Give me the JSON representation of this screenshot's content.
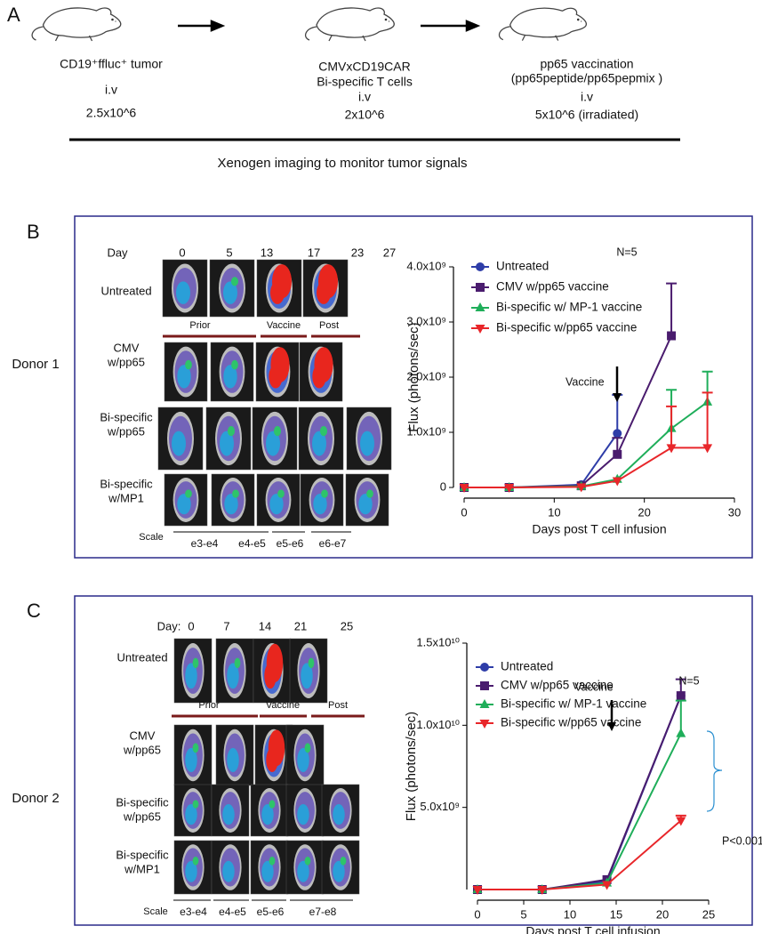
{
  "panel_a": {
    "label": "A",
    "steps": [
      {
        "lines": [
          "CD19⁺ffluc⁺ tumor",
          "i.v",
          "2.5x10^6"
        ]
      },
      {
        "lines": [
          "CMVxCD19CAR",
          "Bi-specific T cells",
          "i.v",
          "2x10^6"
        ]
      },
      {
        "lines": [
          "pp65 vaccination",
          "(pp65peptide/pp65pepmix )",
          "i.v",
          "5x10^6 (irradiated)"
        ]
      }
    ],
    "caption": "Xenogen imaging to monitor tumor signals"
  },
  "panel_b": {
    "label": "B",
    "donor": "Donor 1",
    "day_label": "Day",
    "days": [
      "0",
      "5",
      "13",
      "17",
      "23",
      "27"
    ],
    "rows": [
      [
        "Untreated"
      ],
      [
        "CMV",
        "w/pp65"
      ],
      [
        "Bi-specific",
        "w/pp65"
      ],
      [
        "Bi-specific",
        "w/MP1"
      ]
    ],
    "phases": [
      "Prior",
      "Vaccine",
      "Post"
    ],
    "scale_label": "Scale",
    "scales": [
      "e3-e4",
      "e4-e5",
      "e5-e6",
      "e6-e7"
    ]
  },
  "panel_c": {
    "label": "C",
    "donor": "Donor 2",
    "day_label": "Day:",
    "days": [
      "0",
      "7",
      "14",
      "21",
      "25"
    ],
    "rows": [
      [
        "Untreated"
      ],
      [
        "CMV",
        "w/pp65"
      ],
      [
        "Bi-specific",
        "w/pp65"
      ],
      [
        "Bi-specific",
        "w/MP1"
      ]
    ],
    "phases": [
      "Prior",
      "Vaccine",
      "Post"
    ],
    "scale_label": "Scale",
    "scales": [
      "e3-e4",
      "e4-e5",
      "e5-e6",
      "e7-e8"
    ]
  },
  "chart_data": [
    {
      "type": "line",
      "x_label": "Days post T cell infusion",
      "y_label": "Flux (photons/sec)",
      "annotations": [
        "N=5",
        "Vaccine"
      ],
      "xlim": [
        0,
        30
      ],
      "xticks": [
        0,
        10,
        20,
        30
      ],
      "ylim": [
        0,
        4000000000
      ],
      "yticks": [
        0,
        {
          "value": 1000000000,
          "label": "1.0x10⁹"
        },
        {
          "value": 2000000000,
          "label": "2.0x10⁹"
        },
        {
          "value": 3000000000,
          "label": "3.0x10⁹"
        },
        {
          "value": 4000000000,
          "label": "4.0x10⁹"
        }
      ],
      "series": [
        {
          "name": "Untreated",
          "color": "#2e3da8",
          "marker": "circle",
          "x": [
            0,
            5,
            13,
            17
          ],
          "values": [
            0,
            0,
            50000000,
            980000000
          ],
          "errors": [
            null,
            null,
            null,
            700000000
          ]
        },
        {
          "name": "CMV w/pp65 vaccine",
          "color": "#4a1c6e",
          "marker": "square",
          "x": [
            0,
            5,
            13,
            17,
            23
          ],
          "values": [
            0,
            0,
            30000000,
            600000000,
            2750000000
          ],
          "errors": [
            null,
            null,
            null,
            300000000,
            950000000
          ]
        },
        {
          "name": "Bi-specific w/ MP-1 vaccine",
          "color": "#1fae5a",
          "marker": "triangle-up",
          "x": [
            0,
            5,
            13,
            17,
            23,
            27
          ],
          "values": [
            0,
            0,
            20000000,
            150000000,
            1070000000,
            1550000000
          ],
          "errors": [
            null,
            null,
            null,
            null,
            700000000,
            550000000
          ]
        },
        {
          "name": "Bi-specific w/pp65 vaccine",
          "color": "#e8262a",
          "marker": "triangle-down",
          "x": [
            0,
            5,
            13,
            17,
            23,
            27
          ],
          "values": [
            0,
            0,
            10000000,
            120000000,
            720000000,
            720000000
          ],
          "errors": [
            null,
            null,
            null,
            null,
            750000000,
            1000000000
          ]
        }
      ]
    },
    {
      "type": "line",
      "x_label": "Days post T cell infusion",
      "y_label": "Flux (photons/sec)",
      "annotations": [
        "N=5",
        "Vaccine",
        "P<0.001"
      ],
      "xlim": [
        0,
        25
      ],
      "xticks": [
        0,
        5,
        10,
        15,
        20,
        25
      ],
      "ylim": [
        0,
        15000000000
      ],
      "yticks": [
        {
          "value": 5000000000,
          "label": "5.0x10⁹"
        },
        {
          "value": 10000000000,
          "label": "1.0x10¹⁰"
        },
        {
          "value": 15000000000,
          "label": "1.5x10¹⁰"
        }
      ],
      "series": [
        {
          "name": "Untreated",
          "color": "#2e3da8",
          "marker": "circle",
          "x": [
            0,
            7,
            14,
            22
          ],
          "values": [
            0,
            0,
            500000000,
            11800000000
          ],
          "errors": [
            null,
            null,
            null,
            null
          ]
        },
        {
          "name": "CMV w/pp65 vaccine",
          "color": "#4a1c6e",
          "marker": "square",
          "x": [
            0,
            7,
            14,
            22
          ],
          "values": [
            0,
            0,
            600000000,
            11800000000
          ],
          "errors": [
            null,
            null,
            null,
            1000000000
          ]
        },
        {
          "name": "Bi-specific w/ MP-1 vaccine",
          "color": "#1fae5a",
          "marker": "triangle-up",
          "x": [
            0,
            7,
            14,
            22
          ],
          "values": [
            0,
            0,
            400000000,
            9500000000
          ],
          "errors": [
            null,
            null,
            null,
            2000000000
          ]
        },
        {
          "name": "Bi-specific w/pp65 vaccine",
          "color": "#e8262a",
          "marker": "triangle-down",
          "x": [
            0,
            7,
            14,
            22
          ],
          "values": [
            0,
            0,
            300000000,
            4200000000
          ],
          "errors": [
            null,
            null,
            null,
            300000000
          ]
        }
      ]
    }
  ]
}
